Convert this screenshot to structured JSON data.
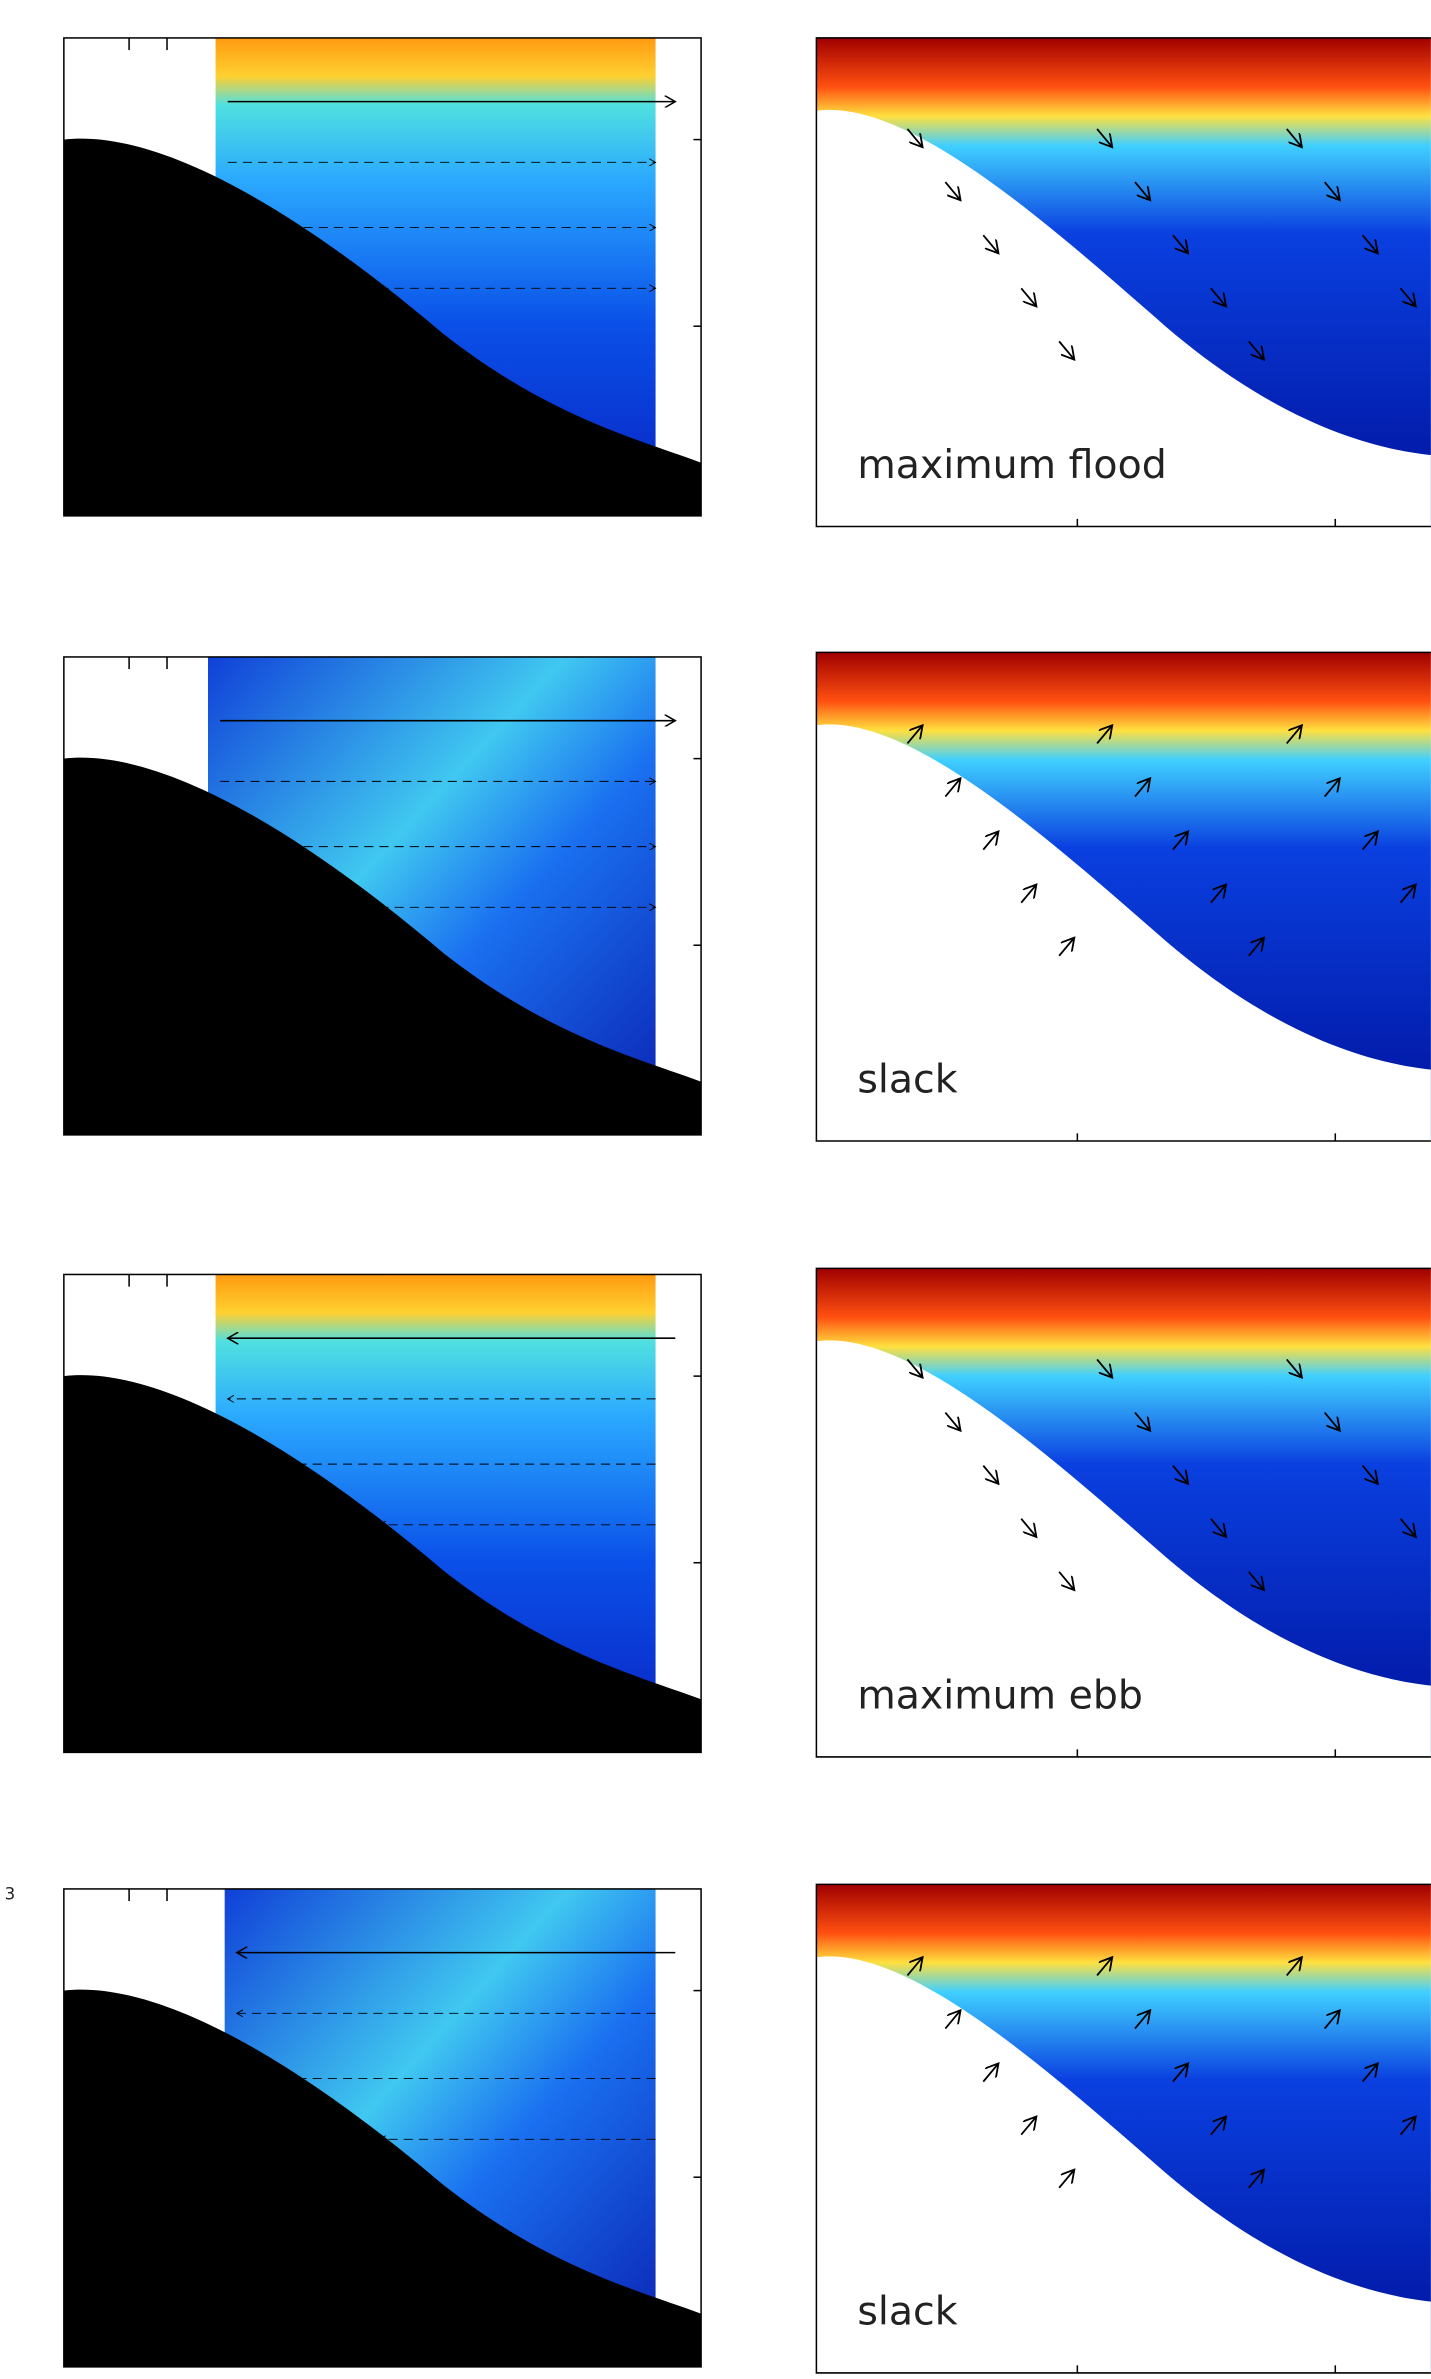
{
  "panels": [
    {
      "label": "maximum flood"
    },
    {
      "label": "slack"
    },
    {
      "label": "maximum ebb"
    },
    {
      "label": "slack"
    }
  ],
  "side_label": "3"
}
